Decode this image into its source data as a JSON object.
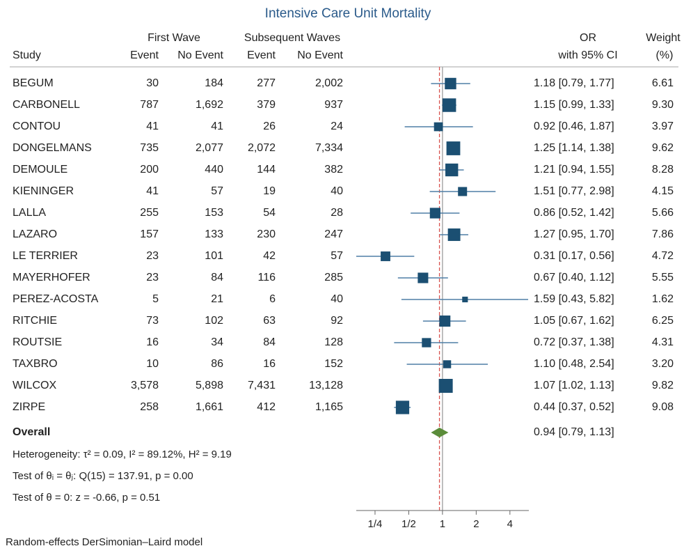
{
  "chart_data": {
    "type": "forest",
    "title": "Intensive Care Unit Mortality",
    "column_groups": [
      "First Wave",
      "Subsequent Waves"
    ],
    "column_headers": [
      "Study",
      "Event",
      "No Event",
      "Event",
      "No Event",
      "OR",
      "with 95% CI",
      "Weight",
      "(%)"
    ],
    "categories": [
      "BEGUM",
      "CARBONELL",
      "CONTOU",
      "DONGELMANS",
      "DEMOULE",
      "KIENINGER",
      "LALLA",
      "LAZARO",
      "LE TERRIER",
      "MAYERHOFER",
      "PEREZ-ACOSTA",
      "RITCHIE",
      "ROUTSIE",
      "TAXBRO",
      "WILCOX",
      "ZIRPE"
    ],
    "table": [
      [
        "30",
        "184",
        "277",
        "2,002"
      ],
      [
        "787",
        "1,692",
        "379",
        "937"
      ],
      [
        "41",
        "41",
        "26",
        "24"
      ],
      [
        "735",
        "2,077",
        "2,072",
        "7,334"
      ],
      [
        "200",
        "440",
        "144",
        "382"
      ],
      [
        "41",
        "57",
        "19",
        "40"
      ],
      [
        "255",
        "153",
        "54",
        "28"
      ],
      [
        "157",
        "133",
        "230",
        "247"
      ],
      [
        "23",
        "101",
        "42",
        "57"
      ],
      [
        "23",
        "84",
        "116",
        "285"
      ],
      [
        "5",
        "21",
        "6",
        "40"
      ],
      [
        "73",
        "102",
        "63",
        "92"
      ],
      [
        "16",
        "34",
        "84",
        "128"
      ],
      [
        "10",
        "86",
        "16",
        "152"
      ],
      [
        "3,578",
        "5,898",
        "7,431",
        "13,128"
      ],
      [
        "258",
        "1,661",
        "412",
        "1,165"
      ]
    ],
    "values": [
      1.18,
      1.15,
      0.92,
      1.25,
      1.21,
      1.51,
      0.86,
      1.27,
      0.31,
      0.67,
      1.59,
      1.05,
      0.72,
      1.1,
      1.07,
      0.44
    ],
    "lower": [
      0.79,
      0.99,
      0.46,
      1.14,
      0.94,
      0.77,
      0.52,
      0.95,
      0.17,
      0.4,
      0.43,
      0.67,
      0.37,
      0.48,
      1.02,
      0.37
    ],
    "upper": [
      1.77,
      1.33,
      1.87,
      1.38,
      1.55,
      2.98,
      1.42,
      1.7,
      0.56,
      1.12,
      5.82,
      1.62,
      1.38,
      2.54,
      1.13,
      0.52
    ],
    "value_labels": [
      "1.18 [0.79, 1.77]",
      "1.15 [0.99, 1.33]",
      "0.92 [0.46, 1.87]",
      "1.25 [1.14, 1.38]",
      "1.21 [0.94, 1.55]",
      "1.51 [0.77, 2.98]",
      "0.86 [0.52, 1.42]",
      "1.27 [0.95, 1.70]",
      "0.31 [0.17, 0.56]",
      "0.67 [0.40, 1.12]",
      "1.59 [0.43, 5.82]",
      "1.05 [0.67, 1.62]",
      "0.72 [0.37, 1.38]",
      "1.10 [0.48, 2.54]",
      "1.07 [1.02, 1.13]",
      "0.44 [0.37, 0.52]"
    ],
    "weights": [
      6.61,
      9.3,
      3.97,
      9.62,
      8.28,
      4.15,
      5.66,
      7.86,
      4.72,
      5.55,
      1.62,
      6.25,
      4.31,
      3.2,
      9.82,
      9.08
    ],
    "weight_labels": [
      "6.61",
      "9.30",
      "3.97",
      "9.62",
      "8.28",
      "4.15",
      "5.66",
      "7.86",
      "4.72",
      "5.55",
      "1.62",
      "6.25",
      "4.31",
      "3.20",
      "9.82",
      "9.08"
    ],
    "overall": {
      "label": "Overall",
      "value": 0.94,
      "lower": 0.79,
      "upper": 1.13,
      "value_label": "0.94 [0.79, 1.13]"
    },
    "stats": [
      "Heterogeneity: τ² = 0.09, I² = 89.12%, H² = 9.19",
      "Test of θᵢ = θⱼ: Q(15) = 137.91, p = 0.00",
      "Test of θ = 0: z = -0.66, p = 0.51"
    ],
    "note": "Random-effects DerSimonian–Laird model",
    "xlim": [
      0.17,
      5.9
    ],
    "xticks": [
      {
        "value": 0.25,
        "label": "1/4"
      },
      {
        "value": 0.5,
        "label": "1/2"
      },
      1,
      2,
      4
    ],
    "log_scale": true,
    "reference_line": 1,
    "color": "#1b4f72",
    "ci_color": "#4f7fa6",
    "overall_color": "#5b8c3a",
    "overall_line_color": "#d9534f"
  }
}
